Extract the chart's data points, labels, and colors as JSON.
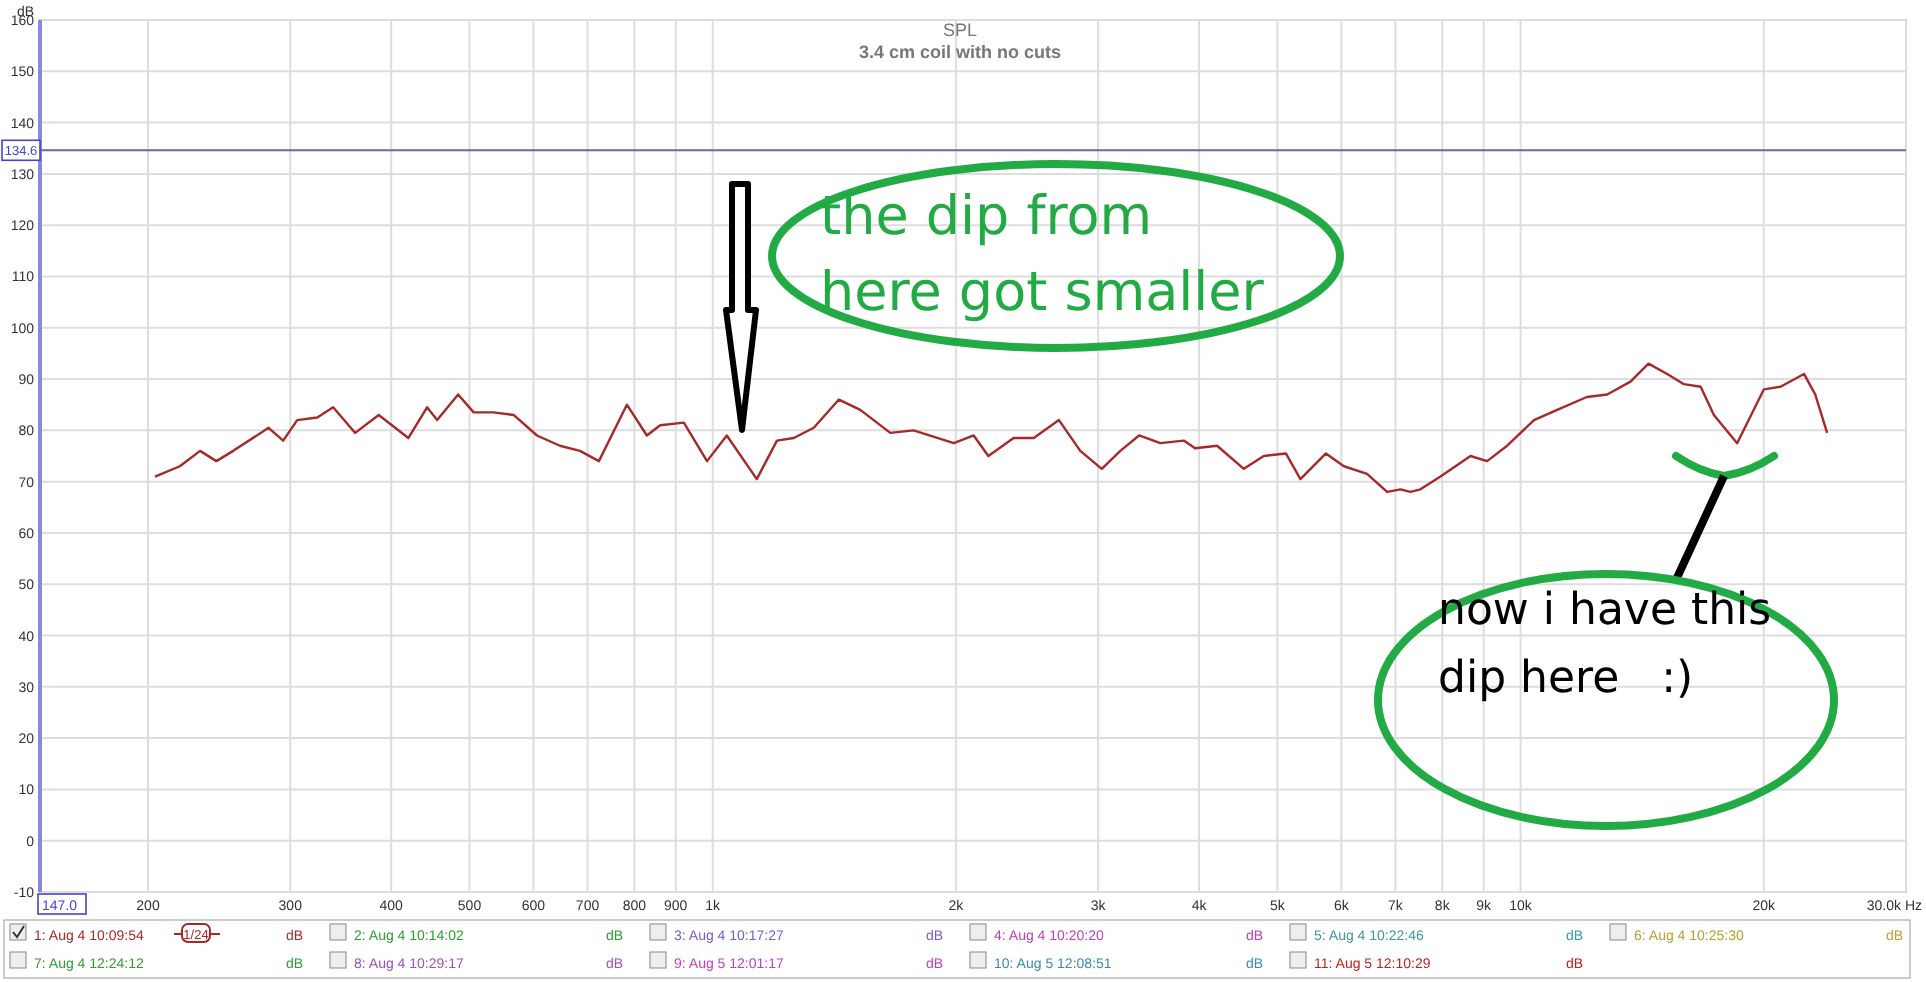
{
  "chart_data": {
    "type": "line",
    "title": "SPL",
    "subtitle": "3.4 cm coil with no cuts",
    "ylabel": "dB",
    "log": "x",
    "grid": true,
    "legend": "bottom",
    "marker": "none",
    "line_style": "solid",
    "xlim": [
      147,
      30000
    ],
    "ylim": [
      -10,
      160
    ],
    "xticks": [
      {
        "value": 147,
        "label": "147.0"
      },
      200,
      300,
      400,
      500,
      600,
      700,
      800,
      900,
      {
        "value": 1000,
        "label": "1k"
      },
      {
        "value": 2000,
        "label": "2k"
      },
      {
        "value": 3000,
        "label": "3k"
      },
      {
        "value": 4000,
        "label": "4k"
      },
      {
        "value": 5000,
        "label": "5k"
      },
      {
        "value": 6000,
        "label": "6k"
      },
      {
        "value": 7000,
        "label": "7k"
      },
      {
        "value": 8000,
        "label": "8k"
      },
      {
        "value": 9000,
        "label": "9k"
      },
      {
        "value": 10000,
        "label": "10k"
      },
      {
        "value": 20000,
        "label": "20k"
      },
      {
        "value": 30000,
        "label": "30.0k Hz"
      }
    ],
    "yticks": [
      -10,
      0,
      10,
      20,
      30,
      40,
      50,
      60,
      70,
      80,
      90,
      100,
      110,
      120,
      130,
      140,
      150,
      160
    ],
    "ref_lines": [
      {
        "axis": "y",
        "value": 134.6,
        "label": "134.6",
        "color": "#6666bb"
      }
    ],
    "series": [
      {
        "name": "1: Aug 4 10:09:54",
        "color": "#a52a2a",
        "x": [
          204,
          219,
          232,
          243,
          255,
          282,
          294,
          306,
          324,
          339,
          361,
          386,
          420,
          443,
          456,
          484,
          506,
          535,
          567,
          606,
          647,
          685,
          723,
          783,
          829,
          861,
          921,
          984,
          1041,
          1134,
          1201,
          1260,
          1334,
          1433,
          1523,
          1659,
          1773,
          1988,
          2104,
          2194,
          2358,
          2497,
          2683,
          2851,
          3031,
          3196,
          3371,
          3582,
          3830,
          3954,
          4211,
          4544,
          4810,
          5123,
          5340,
          5742,
          6044,
          6457,
          6836,
          7102,
          7307,
          7518,
          7960,
          8670,
          9091,
          9625,
          10390,
          11100,
          12080,
          12800,
          13680,
          14400,
          15190,
          15930,
          16710,
          17350,
          18540,
          20010,
          20980,
          22430,
          23160,
          23960
        ],
        "values": [
          71,
          73,
          76,
          74,
          76,
          80.5,
          78,
          82,
          82.5,
          84.5,
          79.5,
          83,
          78.5,
          84.5,
          82,
          87,
          83.5,
          83.5,
          83,
          79,
          77,
          76,
          74,
          85,
          79,
          81,
          81.5,
          74,
          79,
          70.5,
          78,
          78.5,
          80.5,
          86,
          84,
          79.5,
          80,
          77.5,
          79,
          75,
          78.5,
          78.5,
          82,
          76,
          72.5,
          76,
          79,
          77.5,
          78,
          76.5,
          77,
          72.5,
          75,
          75.5,
          70.5,
          75.5,
          73,
          71.5,
          68,
          68.5,
          68,
          68.5,
          71,
          75,
          74,
          77,
          82,
          84,
          86.5,
          87,
          89.5,
          93,
          91,
          89,
          88.5,
          83,
          77.5,
          88,
          88.5,
          91,
          87,
          79.5
        ]
      }
    ],
    "annotations": [
      "the dip from\nhere got smaller",
      "now i have this\ndip here   :)",
      "1/24",
      "dB",
      "2: Aug 4 10:14:02",
      "dB",
      "3: Aug 4 10:17:27",
      "dB",
      "4: Aug 4 10:20:20",
      "dB",
      "5: Aug 4 10:22:46",
      "dB",
      "6: Aug 4 10:25:30",
      "dB",
      "7: Aug 4 12:24:12",
      "dB",
      "8: Aug 4 10:29:17",
      "dB",
      "9: Aug 5 12:01:17",
      "dB",
      "10: Aug 5 12:08:51",
      "dB",
      "11: Aug 5 12:10:29",
      "dB"
    ]
  }
}
